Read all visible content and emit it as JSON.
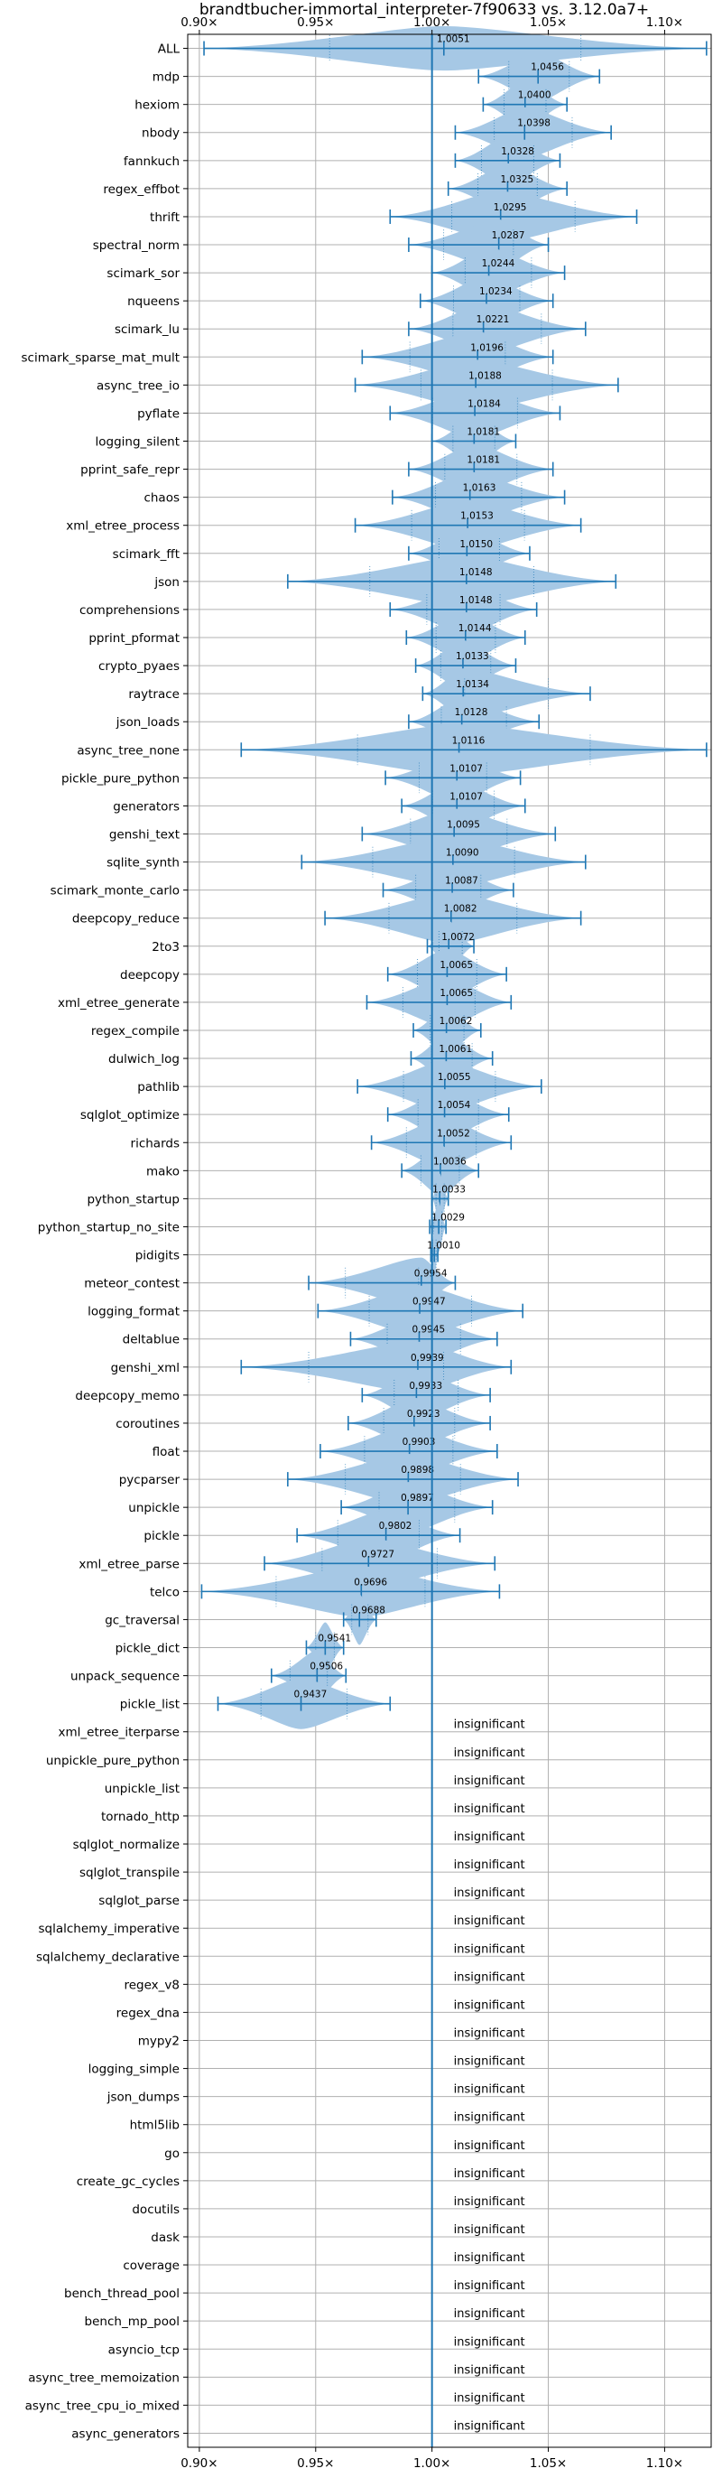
{
  "chart_data": {
    "type": "violin",
    "title": "brandtbucher-immortal_interpreter-7f90633 vs. 3.12.0a7+",
    "xlim": [
      0.895,
      1.12
    ],
    "xticks": [
      0.9,
      0.95,
      1.0,
      1.05,
      1.1
    ],
    "xtick_labels": [
      "0.90×",
      "0.95×",
      "1.00×",
      "1.05×",
      "1.10×"
    ],
    "grid": true,
    "reference_line": 1.0,
    "colors": {
      "line": "#1f77b4",
      "violin": "#a6c8e5",
      "grid": "#b0b0b0",
      "text": "#000000"
    },
    "insignificant_label": "insignificant",
    "benchmarks": [
      {
        "name": "ALL",
        "mean": 1.0051,
        "label": "1.0051",
        "min": 0.902,
        "max": 1.118,
        "halfwidth": 0.35
      },
      {
        "name": "mdp",
        "mean": 1.0456,
        "label": "1.0456",
        "min": 1.02,
        "max": 1.072,
        "halfwidth": 0.4
      },
      {
        "name": "hexiom",
        "mean": 1.04,
        "label": "1.0400",
        "min": 1.022,
        "max": 1.058,
        "halfwidth": 0.4
      },
      {
        "name": "nbody",
        "mean": 1.0398,
        "label": "1.0398",
        "min": 1.01,
        "max": 1.077,
        "halfwidth": 0.4
      },
      {
        "name": "fannkuch",
        "mean": 1.0328,
        "label": "1.0328",
        "min": 1.01,
        "max": 1.055,
        "halfwidth": 0.4
      },
      {
        "name": "regex_effbot",
        "mean": 1.0325,
        "label": "1.0325",
        "min": 1.007,
        "max": 1.058,
        "halfwidth": 0.4
      },
      {
        "name": "thrift",
        "mean": 1.0295,
        "label": "1.0295",
        "min": 0.982,
        "max": 1.088,
        "halfwidth": 0.4
      },
      {
        "name": "spectral_norm",
        "mean": 1.0287,
        "label": "1.0287",
        "min": 0.99,
        "max": 1.05,
        "halfwidth": 0.4
      },
      {
        "name": "scimark_sor",
        "mean": 1.0244,
        "label": "1.0244",
        "min": 1.0,
        "max": 1.057,
        "halfwidth": 0.4
      },
      {
        "name": "nqueens",
        "mean": 1.0234,
        "label": "1.0234",
        "min": 0.995,
        "max": 1.052,
        "halfwidth": 0.4
      },
      {
        "name": "scimark_lu",
        "mean": 1.0221,
        "label": "1.0221",
        "min": 0.99,
        "max": 1.066,
        "halfwidth": 0.4
      },
      {
        "name": "scimark_sparse_mat_mult",
        "mean": 1.0196,
        "label": "1.0196",
        "min": 0.97,
        "max": 1.052,
        "halfwidth": 0.4
      },
      {
        "name": "async_tree_io",
        "mean": 1.0188,
        "label": "1.0188",
        "min": 0.967,
        "max": 1.08,
        "halfwidth": 0.4
      },
      {
        "name": "pyflate",
        "mean": 1.0184,
        "label": "1.0184",
        "min": 0.982,
        "max": 1.055,
        "halfwidth": 0.4
      },
      {
        "name": "logging_silent",
        "mean": 1.0181,
        "label": "1.0181",
        "min": 1.0,
        "max": 1.036,
        "halfwidth": 0.4
      },
      {
        "name": "pprint_safe_repr",
        "mean": 1.0181,
        "label": "1.0181",
        "min": 0.99,
        "max": 1.052,
        "halfwidth": 0.4
      },
      {
        "name": "chaos",
        "mean": 1.0163,
        "label": "1.0163",
        "min": 0.983,
        "max": 1.057,
        "halfwidth": 0.4
      },
      {
        "name": "xml_etree_process",
        "mean": 1.0153,
        "label": "1.0153",
        "min": 0.967,
        "max": 1.064,
        "halfwidth": 0.4
      },
      {
        "name": "scimark_fft",
        "mean": 1.015,
        "label": "1.0150",
        "min": 0.99,
        "max": 1.042,
        "halfwidth": 0.4
      },
      {
        "name": "json",
        "mean": 1.0148,
        "label": "1.0148",
        "min": 0.938,
        "max": 1.079,
        "halfwidth": 0.4
      },
      {
        "name": "comprehensions",
        "mean": 1.0148,
        "label": "1.0148",
        "min": 0.982,
        "max": 1.045,
        "halfwidth": 0.4
      },
      {
        "name": "pprint_pformat",
        "mean": 1.0144,
        "label": "1.0144",
        "min": 0.989,
        "max": 1.04,
        "halfwidth": 0.4
      },
      {
        "name": "crypto_pyaes",
        "mean": 1.0133,
        "label": "1.0133",
        "min": 0.993,
        "max": 1.036,
        "halfwidth": 0.4
      },
      {
        "name": "raytrace",
        "mean": 1.0134,
        "label": "1.0134",
        "min": 0.996,
        "max": 1.068,
        "halfwidth": 0.4
      },
      {
        "name": "json_loads",
        "mean": 1.0128,
        "label": "1.0128",
        "min": 0.99,
        "max": 1.046,
        "halfwidth": 0.4
      },
      {
        "name": "async_tree_none",
        "mean": 1.0116,
        "label": "1.0116",
        "min": 0.918,
        "max": 1.118,
        "halfwidth": 0.4
      },
      {
        "name": "pickle_pure_python",
        "mean": 1.0107,
        "label": "1.0107",
        "min": 0.98,
        "max": 1.038,
        "halfwidth": 0.4
      },
      {
        "name": "generators",
        "mean": 1.0107,
        "label": "1.0107",
        "min": 0.987,
        "max": 1.04,
        "halfwidth": 0.4
      },
      {
        "name": "genshi_text",
        "mean": 1.0095,
        "label": "1.0095",
        "min": 0.97,
        "max": 1.053,
        "halfwidth": 0.4
      },
      {
        "name": "sqlite_synth",
        "mean": 1.009,
        "label": "1.0090",
        "min": 0.944,
        "max": 1.066,
        "halfwidth": 0.4
      },
      {
        "name": "scimark_monte_carlo",
        "mean": 1.0087,
        "label": "1.0087",
        "min": 0.979,
        "max": 1.035,
        "halfwidth": 0.4
      },
      {
        "name": "deepcopy_reduce",
        "mean": 1.0082,
        "label": "1.0082",
        "min": 0.954,
        "max": 1.064,
        "halfwidth": 0.4
      },
      {
        "name": "2to3",
        "mean": 1.0072,
        "label": "1.0072",
        "min": 0.998,
        "max": 1.018,
        "halfwidth": 0.4
      },
      {
        "name": "deepcopy",
        "mean": 1.0065,
        "label": "1.0065",
        "min": 0.981,
        "max": 1.032,
        "halfwidth": 0.4
      },
      {
        "name": "xml_etree_generate",
        "mean": 1.0065,
        "label": "1.0065",
        "min": 0.972,
        "max": 1.034,
        "halfwidth": 0.4
      },
      {
        "name": "regex_compile",
        "mean": 1.0062,
        "label": "1.0062",
        "min": 0.992,
        "max": 1.021,
        "halfwidth": 0.4
      },
      {
        "name": "dulwich_log",
        "mean": 1.0061,
        "label": "1.0061",
        "min": 0.991,
        "max": 1.026,
        "halfwidth": 0.4
      },
      {
        "name": "pathlib",
        "mean": 1.0055,
        "label": "1.0055",
        "min": 0.968,
        "max": 1.047,
        "halfwidth": 0.4
      },
      {
        "name": "sqlglot_optimize",
        "mean": 1.0054,
        "label": "1.0054",
        "min": 0.981,
        "max": 1.033,
        "halfwidth": 0.4
      },
      {
        "name": "richards",
        "mean": 1.0052,
        "label": "1.0052",
        "min": 0.974,
        "max": 1.034,
        "halfwidth": 0.4
      },
      {
        "name": "mako",
        "mean": 1.0036,
        "label": "1.0036",
        "min": 0.987,
        "max": 1.02,
        "halfwidth": 0.4
      },
      {
        "name": "python_startup",
        "mean": 1.0033,
        "label": "1.0033",
        "min": 1.0,
        "max": 1.007,
        "halfwidth": 0.4
      },
      {
        "name": "python_startup_no_site",
        "mean": 1.0029,
        "label": "1.0029",
        "min": 0.999,
        "max": 1.006,
        "halfwidth": 0.4
      },
      {
        "name": "pidigits",
        "mean": 1.001,
        "label": "1.0010",
        "min": 0.9995,
        "max": 1.0025,
        "halfwidth": 0.4
      },
      {
        "name": "meteor_contest",
        "mean": 0.9954,
        "label": "0.9954",
        "min": 0.947,
        "max": 1.01,
        "halfwidth": 0.4
      },
      {
        "name": "logging_format",
        "mean": 0.9947,
        "label": "0.9947",
        "min": 0.951,
        "max": 1.039,
        "halfwidth": 0.4
      },
      {
        "name": "deltablue",
        "mean": 0.9945,
        "label": "0.9945",
        "min": 0.965,
        "max": 1.028,
        "halfwidth": 0.4
      },
      {
        "name": "genshi_xml",
        "mean": 0.9939,
        "label": "0.9939",
        "min": 0.918,
        "max": 1.034,
        "halfwidth": 0.4
      },
      {
        "name": "deepcopy_memo",
        "mean": 0.9933,
        "label": "0.9933",
        "min": 0.97,
        "max": 1.025,
        "halfwidth": 0.4
      },
      {
        "name": "coroutines",
        "mean": 0.9923,
        "label": "0.9923",
        "min": 0.964,
        "max": 1.025,
        "halfwidth": 0.4
      },
      {
        "name": "float",
        "mean": 0.9903,
        "label": "0.9903",
        "min": 0.952,
        "max": 1.028,
        "halfwidth": 0.4
      },
      {
        "name": "pycparser",
        "mean": 0.9898,
        "label": "0.9898",
        "min": 0.938,
        "max": 1.037,
        "halfwidth": 0.4
      },
      {
        "name": "unpickle",
        "mean": 0.9897,
        "label": "0.9897",
        "min": 0.961,
        "max": 1.026,
        "halfwidth": 0.4
      },
      {
        "name": "pickle",
        "mean": 0.9802,
        "label": "0.9802",
        "min": 0.942,
        "max": 1.012,
        "halfwidth": 0.4
      },
      {
        "name": "xml_etree_parse",
        "mean": 0.9727,
        "label": "0.9727",
        "min": 0.928,
        "max": 1.027,
        "halfwidth": 0.4
      },
      {
        "name": "telco",
        "mean": 0.9696,
        "label": "0.9696",
        "min": 0.901,
        "max": 1.029,
        "halfwidth": 0.4
      },
      {
        "name": "gc_traversal",
        "mean": 0.9688,
        "label": "0.9688",
        "min": 0.962,
        "max": 0.976,
        "halfwidth": 0.4
      },
      {
        "name": "pickle_dict",
        "mean": 0.9541,
        "label": "0.9541",
        "min": 0.946,
        "max": 0.962,
        "halfwidth": 0.4
      },
      {
        "name": "unpack_sequence",
        "mean": 0.9506,
        "label": "0.9506",
        "min": 0.931,
        "max": 0.963,
        "halfwidth": 0.4
      },
      {
        "name": "pickle_list",
        "mean": 0.9437,
        "label": "0.9437",
        "min": 0.908,
        "max": 0.982,
        "halfwidth": 0.4
      },
      {
        "name": "xml_etree_iterparse",
        "insignificant": true
      },
      {
        "name": "unpickle_pure_python",
        "insignificant": true
      },
      {
        "name": "unpickle_list",
        "insignificant": true
      },
      {
        "name": "tornado_http",
        "insignificant": true
      },
      {
        "name": "sqlglot_normalize",
        "insignificant": true
      },
      {
        "name": "sqlglot_transpile",
        "insignificant": true
      },
      {
        "name": "sqlglot_parse",
        "insignificant": true
      },
      {
        "name": "sqlalchemy_imperative",
        "insignificant": true
      },
      {
        "name": "sqlalchemy_declarative",
        "insignificant": true
      },
      {
        "name": "regex_v8",
        "insignificant": true
      },
      {
        "name": "regex_dna",
        "insignificant": true
      },
      {
        "name": "mypy2",
        "insignificant": true
      },
      {
        "name": "logging_simple",
        "insignificant": true
      },
      {
        "name": "json_dumps",
        "insignificant": true
      },
      {
        "name": "html5lib",
        "insignificant": true
      },
      {
        "name": "go",
        "insignificant": true
      },
      {
        "name": "create_gc_cycles",
        "insignificant": true
      },
      {
        "name": "docutils",
        "insignificant": true
      },
      {
        "name": "dask",
        "insignificant": true
      },
      {
        "name": "coverage",
        "insignificant": true
      },
      {
        "name": "bench_thread_pool",
        "insignificant": true
      },
      {
        "name": "bench_mp_pool",
        "insignificant": true
      },
      {
        "name": "asyncio_tcp",
        "insignificant": true
      },
      {
        "name": "async_tree_memoization",
        "insignificant": true
      },
      {
        "name": "async_tree_cpu_io_mixed",
        "insignificant": true
      },
      {
        "name": "async_generators",
        "insignificant": true
      }
    ]
  }
}
